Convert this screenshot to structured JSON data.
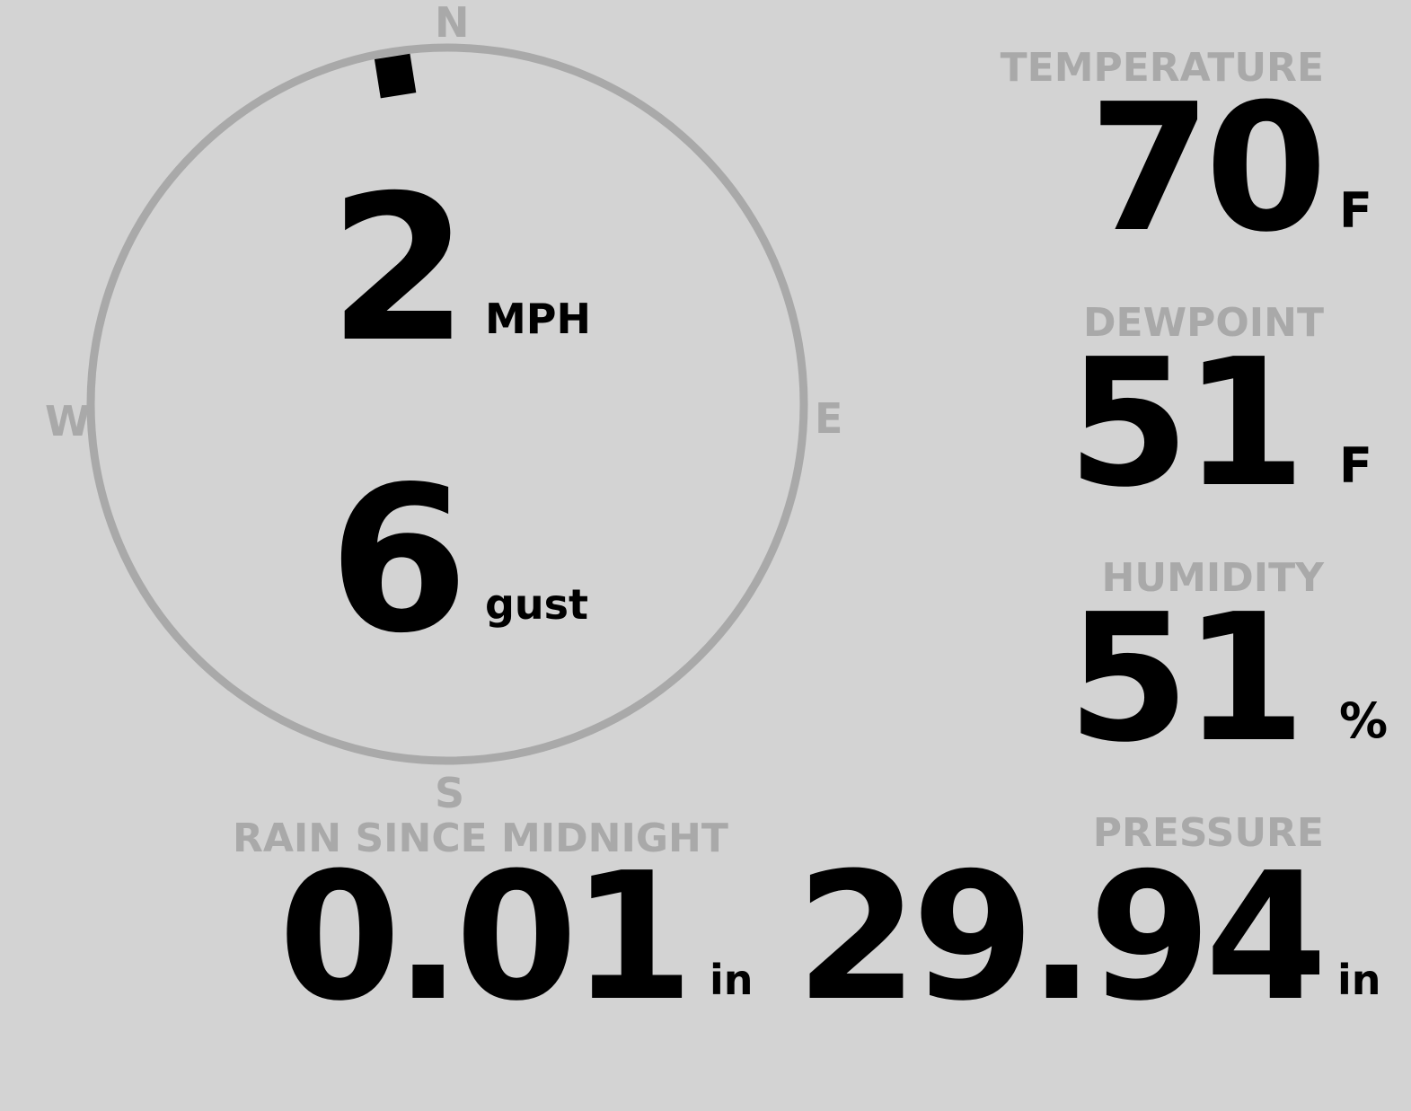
{
  "wind": {
    "speed": "2",
    "speed_unit": "MPH",
    "gust": "6",
    "gust_unit": "gust",
    "direction_degrees": 351,
    "cardinals": {
      "n": "N",
      "e": "E",
      "s": "S",
      "w": "W"
    }
  },
  "temperature": {
    "label": "TEMPERATURE",
    "value": "70",
    "unit": "F"
  },
  "dewpoint": {
    "label": "DEWPOINT",
    "value": "51",
    "unit": "F"
  },
  "humidity": {
    "label": "HUMIDITY",
    "value": "51",
    "unit": "%"
  },
  "rain": {
    "label": "RAIN SINCE MIDNIGHT",
    "value": "0.01",
    "unit": "in"
  },
  "pressure": {
    "label": "PRESSURE",
    "value": "29.94",
    "unit": "in"
  },
  "colors": {
    "background": "#d3d3d3",
    "label": "#a9a9a9",
    "value": "#000000"
  }
}
